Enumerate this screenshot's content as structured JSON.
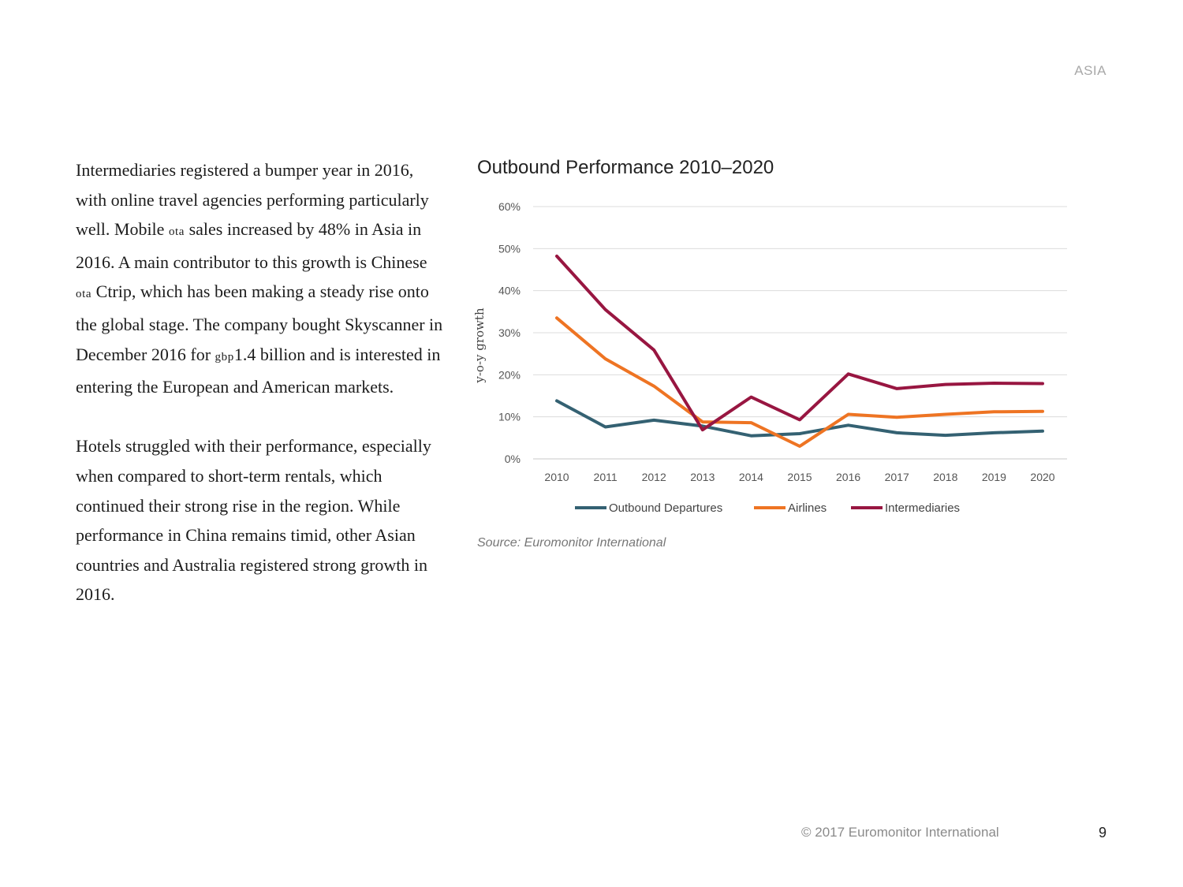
{
  "header": {
    "section": "ASIA"
  },
  "body": {
    "p1": {
      "t1": "Intermediaries registered a bumper year in 2016, with online travel agencies performing particularly well. Mobile ",
      "sc1": "ota",
      "t2": " sales increased by 48% in Asia in 2016. A main contributor to this growth is Chinese ",
      "sc2": "ota",
      "t3": " Ctrip, which has been making a steady rise onto the global stage. The company bought Skyscanner in December 2016 for ",
      "sc3": "gbp",
      "t4": "1.4 billion and is interested in entering the European and American markets."
    },
    "p2": "Hotels struggled with their performance, especially when compared to short-term rentals, which continued their strong rise in the region. While performance in China remains timid, other Asian countries and Australia registered strong growth in 2016."
  },
  "chart_data": {
    "type": "line",
    "title": "Outbound Performance 2010–2020",
    "xlabel": "",
    "ylabel": "y-o-y growth",
    "categories": [
      "2010",
      "2011",
      "2012",
      "2013",
      "2014",
      "2015",
      "2016",
      "2017",
      "2018",
      "2019",
      "2020"
    ],
    "yticks": [
      "0%",
      "10%",
      "20%",
      "30%",
      "40%",
      "50%",
      "60%"
    ],
    "ylim": [
      0,
      60
    ],
    "grid": true,
    "legend_position": "bottom",
    "series": [
      {
        "name": "Outbound Departures",
        "color": "#346172",
        "values": [
          13.8,
          7.6,
          9.2,
          7.8,
          5.5,
          6.0,
          8.0,
          6.2,
          5.6,
          6.2,
          6.6
        ]
      },
      {
        "name": "Airlines",
        "color": "#EE7423",
        "values": [
          33.5,
          23.8,
          17.3,
          8.8,
          8.6,
          3.0,
          10.6,
          9.9,
          10.6,
          11.2,
          11.3
        ]
      },
      {
        "name": "Intermediaries",
        "color": "#981641",
        "values": [
          48.2,
          35.5,
          25.9,
          6.9,
          14.7,
          9.3,
          20.2,
          16.7,
          17.7,
          18.0,
          17.9
        ]
      }
    ]
  },
  "source": "Source: Euromonitor International",
  "footer": {
    "copyright": "© 2017 Euromonitor International",
    "page": "9"
  }
}
